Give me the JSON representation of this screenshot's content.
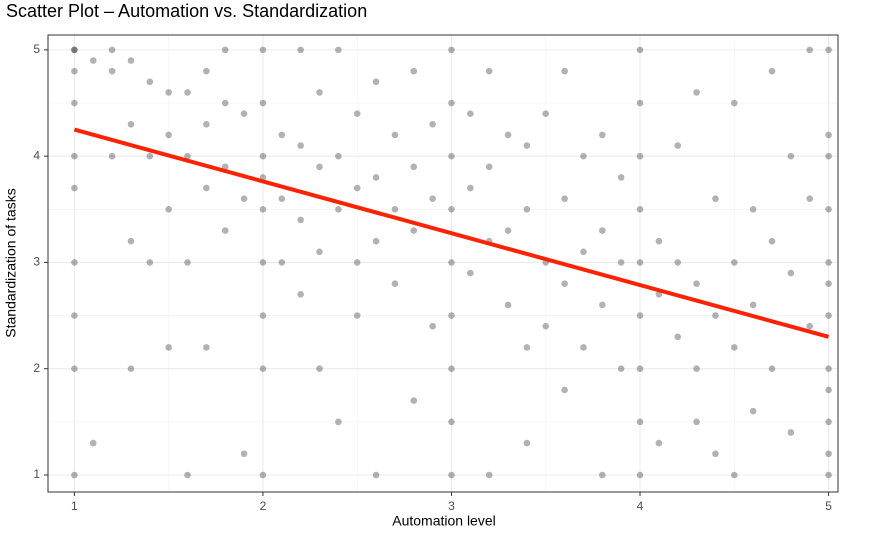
{
  "chart_data": {
    "type": "scatter",
    "title": "Scatter Plot – Automation vs. Standardization",
    "x_label": "Automation level",
    "y_label": "Standardization of tasks",
    "xlim": [
      0.86,
      5.05
    ],
    "ylim": [
      0.84,
      5.14
    ],
    "xticks": [
      1,
      2,
      3,
      4,
      5
    ],
    "yticks": [
      1,
      2,
      3,
      4,
      5
    ],
    "grid": true,
    "point_color": "#000000",
    "point_opacity": 0.3,
    "x": [
      1,
      1,
      1,
      1,
      1,
      1,
      1,
      1,
      1,
      1,
      1.1,
      1.1,
      1.2,
      1.2,
      1.2,
      1.3,
      1.3,
      1.3,
      1.3,
      1.4,
      1.4,
      1.4,
      1.5,
      1.5,
      1.5,
      1.5,
      1.6,
      1.6,
      1.6,
      1.6,
      1.7,
      1.7,
      1.7,
      1.7,
      1.8,
      1.8,
      1.8,
      1.8,
      1.9,
      1.9,
      1.9,
      2,
      2,
      2,
      2,
      2,
      2,
      2,
      2,
      2,
      2.1,
      2.1,
      2.1,
      2.2,
      2.2,
      2.2,
      2.2,
      2.3,
      2.3,
      2.3,
      2.3,
      2.4,
      2.4,
      2.4,
      2.4,
      2.5,
      2.5,
      2.5,
      2.5,
      2.6,
      2.6,
      2.6,
      2.6,
      2.7,
      2.7,
      2.7,
      2.8,
      2.8,
      2.8,
      2.8,
      2.9,
      2.9,
      2.9,
      3,
      3,
      3,
      3,
      3,
      3,
      3,
      3,
      3,
      3.1,
      3.1,
      3.1,
      3.2,
      3.2,
      3.2,
      3.2,
      3.3,
      3.3,
      3.3,
      3.4,
      3.4,
      3.4,
      3.4,
      3.5,
      3.5,
      3.5,
      3.6,
      3.6,
      3.6,
      3.6,
      3.7,
      3.7,
      3.7,
      3.8,
      3.8,
      3.8,
      3.8,
      3.9,
      3.9,
      3.9,
      4,
      4,
      4,
      4,
      4,
      4,
      4,
      4,
      4,
      4.1,
      4.1,
      4.1,
      4.2,
      4.2,
      4.2,
      4.3,
      4.3,
      4.3,
      4.3,
      4.4,
      4.4,
      4.4,
      4.5,
      4.5,
      4.5,
      4.5,
      4.6,
      4.6,
      4.6,
      4.7,
      4.7,
      4.7,
      4.8,
      4.8,
      4.8,
      4.9,
      4.9,
      4.9,
      5,
      5,
      5,
      5,
      5,
      5,
      5,
      5,
      5,
      5,
      5,
      5
    ],
    "y": [
      5,
      5,
      4.8,
      4.5,
      4,
      3.7,
      3,
      2.5,
      2,
      1,
      1.3,
      4.9,
      5,
      4.8,
      4,
      4.9,
      4.3,
      3.2,
      2,
      4.7,
      4,
      3,
      4.6,
      4.2,
      3.5,
      2.2,
      4.6,
      4,
      3,
      1,
      4.8,
      4.3,
      3.7,
      2.2,
      5,
      4.5,
      3.9,
      3.3,
      4.4,
      3.6,
      1.2,
      5,
      4.5,
      4,
      3.8,
      3.5,
      3,
      2.5,
      2,
      1,
      4.2,
      3.6,
      3,
      5,
      4.1,
      3.4,
      2.7,
      4.6,
      3.9,
      3.1,
      2,
      5,
      4,
      3.5,
      1.5,
      4.4,
      3.7,
      3,
      2.5,
      4.7,
      3.8,
      3.2,
      1,
      4.2,
      3.5,
      2.8,
      4.8,
      3.9,
      3.3,
      1.7,
      4.3,
      3.6,
      2.4,
      5,
      4.5,
      4,
      3.5,
      3,
      2.5,
      2,
      1.5,
      1,
      4.4,
      3.7,
      2.9,
      4.8,
      3.9,
      3.2,
      1,
      4.2,
      3.3,
      2.6,
      4.1,
      3.5,
      2.2,
      1.3,
      4.4,
      3,
      2.4,
      4.8,
      3.6,
      2.8,
      1.8,
      4,
      3.1,
      2.2,
      4.2,
      3.3,
      2.6,
      1,
      3.8,
      3,
      2,
      5,
      4.5,
      4,
      3.5,
      3,
      2.5,
      2,
      1.5,
      1,
      3.2,
      2.7,
      1.3,
      4.1,
      3,
      2.3,
      4.6,
      2.8,
      2,
      1.5,
      3.6,
      2.5,
      1.2,
      4.5,
      3,
      2.2,
      1,
      3.5,
      2.6,
      1.6,
      4.8,
      3.2,
      2,
      4,
      2.9,
      1.4,
      5,
      3.6,
      2.4,
      5,
      4.2,
      4,
      3.5,
      3,
      2.8,
      2.5,
      2,
      1.8,
      1.5,
      1.2,
      1
    ],
    "trend": {
      "x": [
        1,
        5
      ],
      "y": [
        4.25,
        2.3
      ],
      "color": "#ff2200"
    }
  }
}
